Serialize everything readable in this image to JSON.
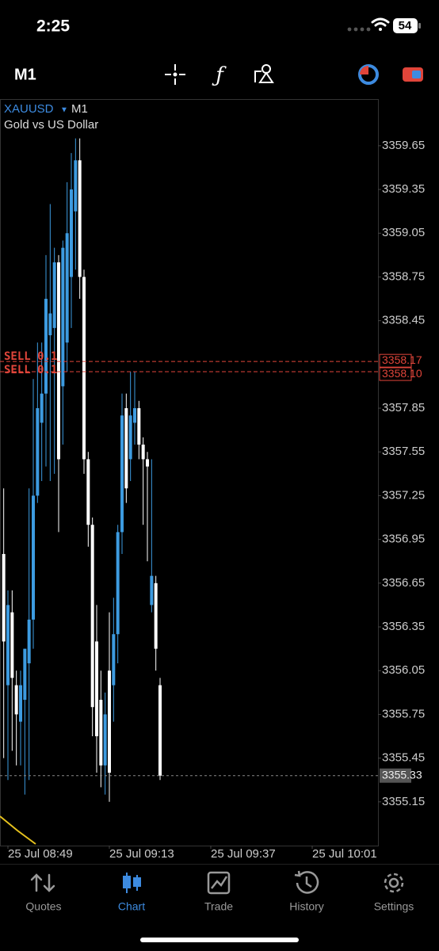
{
  "status_bar": {
    "time": "2:25",
    "battery": "54"
  },
  "toolbar": {
    "timeframe": "M1"
  },
  "chart_data": {
    "type": "candlestick",
    "symbol": "XAUUSD",
    "timeframe": "M1",
    "description": "Gold vs US Dollar",
    "up_color": "#3d9be0",
    "down_color": "#ffffff",
    "x": [
      528,
      529,
      530,
      531,
      532,
      533,
      534,
      535,
      536,
      537,
      538,
      539,
      540,
      541,
      542,
      543,
      544,
      545,
      546,
      547,
      548,
      549,
      550,
      551,
      552,
      553,
      554,
      555,
      556,
      557,
      558,
      559,
      560,
      561,
      562,
      563,
      564,
      565
    ],
    "open": [
      3356.85,
      3355.95,
      3356.45,
      3355.95,
      3355.7,
      3355.85,
      3356.1,
      3356.4,
      3357.25,
      3357.75,
      3357.95,
      3358.35,
      3358.4,
      3358.85,
      3358.0,
      3358.3,
      3358.75,
      3359.2,
      3359.55,
      3358.75,
      3357.5,
      3357.05,
      3356.25,
      3355.85,
      3355.4,
      3356.05,
      3355.95,
      3356.3,
      3357.0,
      3357.85,
      3357.5,
      3357.75,
      3357.85,
      3357.6,
      3357.5,
      3356.5,
      3356.65,
      3355.95
    ],
    "high": [
      3357.3,
      3356.6,
      3356.6,
      3356.05,
      3356.05,
      3356.2,
      3357.3,
      3358.05,
      3358.3,
      3358.3,
      3358.9,
      3359.25,
      3358.95,
      3358.9,
      3359.0,
      3359.4,
      3359.6,
      3359.7,
      3359.7,
      3358.8,
      3357.55,
      3357.1,
      3356.5,
      3356.05,
      3355.9,
      3356.45,
      3356.55,
      3357.05,
      3357.95,
      3357.95,
      3358.1,
      3358.1,
      3357.9,
      3357.65,
      3357.55,
      3357.5,
      3356.7,
      3356.0
    ],
    "low": [
      3355.45,
      3355.3,
      3355.5,
      3355.4,
      3355.4,
      3355.2,
      3355.3,
      3356.2,
      3357.2,
      3357.35,
      3357.45,
      3357.35,
      3357.4,
      3357.0,
      3357.6,
      3358.1,
      3358.4,
      3358.8,
      3358.6,
      3357.4,
      3356.9,
      3355.6,
      3355.35,
      3355.25,
      3355.2,
      3355.15,
      3355.7,
      3356.1,
      3356.85,
      3357.2,
      3357.35,
      3357.6,
      3357.5,
      3357.05,
      3356.8,
      3356.45,
      3356.05,
      3355.3
    ],
    "close": [
      3356.25,
      3356.5,
      3356.0,
      3355.75,
      3355.95,
      3356.2,
      3356.4,
      3357.25,
      3357.85,
      3357.95,
      3358.6,
      3358.5,
      3358.85,
      3357.5,
      3358.95,
      3359.05,
      3359.35,
      3359.55,
      3358.75,
      3357.5,
      3357.05,
      3355.8,
      3355.6,
      3355.4,
      3355.75,
      3355.35,
      3356.3,
      3357.0,
      3357.8,
      3357.3,
      3357.8,
      3357.85,
      3357.6,
      3357.5,
      3357.45,
      3356.7,
      3356.2,
      3355.33
    ],
    "xlim": [
      527.125,
      616.56
    ],
    "xticks": [
      {
        "value": 529,
        "label": "25 Jul 08:49"
      },
      {
        "value": 553,
        "label": "25 Jul 09:13"
      },
      {
        "value": 577,
        "label": "25 Jul 09:37"
      },
      {
        "value": 601,
        "label": "25 Jul 10:01"
      }
    ],
    "ylim": [
      3354.85,
      3359.97
    ],
    "yticks": [
      3359.65,
      3359.35,
      3359.05,
      3358.75,
      3358.45,
      3357.85,
      3357.55,
      3357.25,
      3356.95,
      3356.65,
      3356.35,
      3356.05,
      3355.75,
      3355.45,
      3355.15
    ],
    "orders": [
      {
        "label": "SELL 0.1",
        "price": 3358.17,
        "price_label": "3358.17"
      },
      {
        "label": "SELL 0.1",
        "price": 3358.1,
        "price_label": "3358.10"
      }
    ],
    "current_price": 3355.33,
    "order_color": "#e0453a",
    "grid": false
  },
  "tab_bar": {
    "tabs": [
      "Quotes",
      "Chart",
      "Trade",
      "History",
      "Settings"
    ],
    "active": 1
  }
}
